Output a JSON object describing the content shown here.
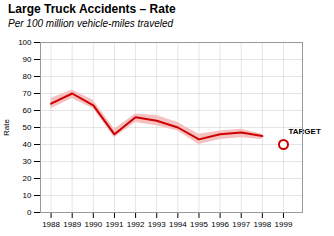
{
  "chart_data": {
    "type": "line",
    "title": "Large Truck Accidents – Rate",
    "subtitle": "Per 100 million vehicle-miles traveled",
    "y_label": "Rate",
    "x": [
      1988,
      1989,
      1990,
      1991,
      1992,
      1993,
      1994,
      1995,
      1996,
      1997,
      1998
    ],
    "series": [
      {
        "type": "area",
        "color": "#f5c0c0",
        "lower": [
          61,
          67,
          61,
          44,
          53,
          51,
          48,
          40,
          43,
          44,
          43
        ],
        "upper": [
          67,
          72,
          66,
          49,
          58,
          57,
          53,
          46,
          48,
          49,
          46
        ]
      },
      {
        "type": "line",
        "color": "#cc0000",
        "values": [
          64,
          70,
          63,
          46,
          56,
          54,
          50,
          43,
          46,
          47,
          45
        ]
      }
    ],
    "annotations": [
      {
        "text": "TARGET",
        "x": 1999,
        "y": 40,
        "marker": "circle",
        "color": "#cc0000"
      }
    ],
    "xlim": [
      1987.5,
      1999.9
    ],
    "xticks": [
      1988,
      1989,
      1990,
      1991,
      1992,
      1993,
      1994,
      1995,
      1996,
      1997,
      1998,
      1999
    ],
    "ylim": [
      0,
      100
    ],
    "yticks": [
      0,
      10,
      20,
      30,
      40,
      50,
      60,
      70,
      80,
      90,
      100
    ],
    "grid": true
  }
}
